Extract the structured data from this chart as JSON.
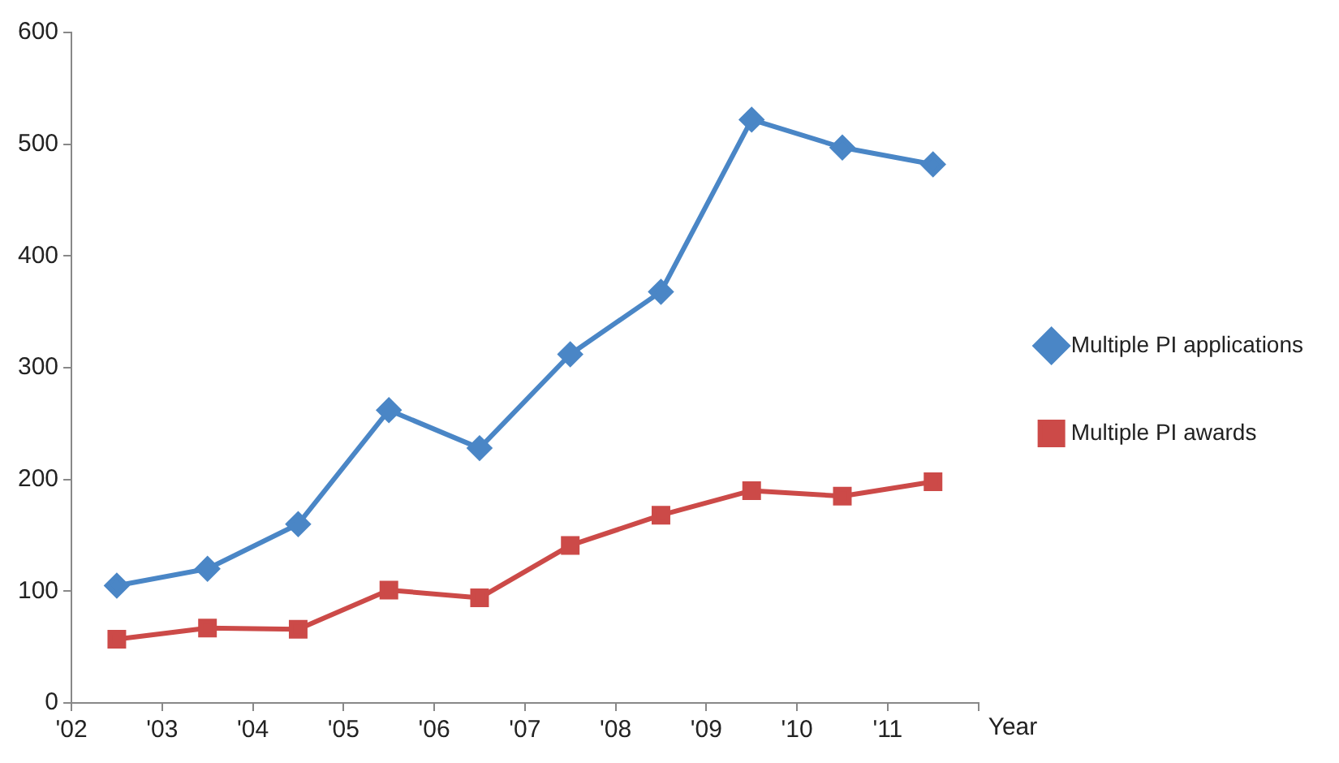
{
  "chart_data": {
    "type": "line",
    "xlabel": "Year",
    "x": [
      2002.5,
      2003.5,
      2004.5,
      2005.5,
      2006.5,
      2007.5,
      2008.5,
      2009.5,
      2010.5,
      2011.5
    ],
    "xlim": [
      2002,
      2012
    ],
    "xticks": [
      {
        "value": 2002,
        "label": "'02"
      },
      {
        "value": 2003,
        "label": "'03"
      },
      {
        "value": 2004,
        "label": "'04"
      },
      {
        "value": 2005,
        "label": "'05"
      },
      {
        "value": 2006,
        "label": "'06"
      },
      {
        "value": 2007,
        "label": "'07"
      },
      {
        "value": 2008,
        "label": "'08"
      },
      {
        "value": 2009,
        "label": "'09"
      },
      {
        "value": 2010,
        "label": "'10"
      },
      {
        "value": 2011,
        "label": "'11"
      },
      {
        "value": 2012,
        "label": null
      }
    ],
    "ylim": [
      0,
      600
    ],
    "yticks": [
      0,
      100,
      200,
      300,
      400,
      500,
      600
    ],
    "grid": false,
    "legend": "right",
    "line_style": "solid",
    "series": [
      {
        "name": "Multiple PI applications",
        "color": "#4a86c6",
        "marker": "diamond",
        "values": [
          105,
          120,
          160,
          262,
          228,
          312,
          368,
          522,
          497,
          482
        ]
      },
      {
        "name": "Multiple PI awards",
        "color": "#cc4a48",
        "marker": "square",
        "values": [
          57,
          67,
          66,
          101,
          94,
          141,
          168,
          190,
          185,
          198
        ]
      }
    ]
  }
}
